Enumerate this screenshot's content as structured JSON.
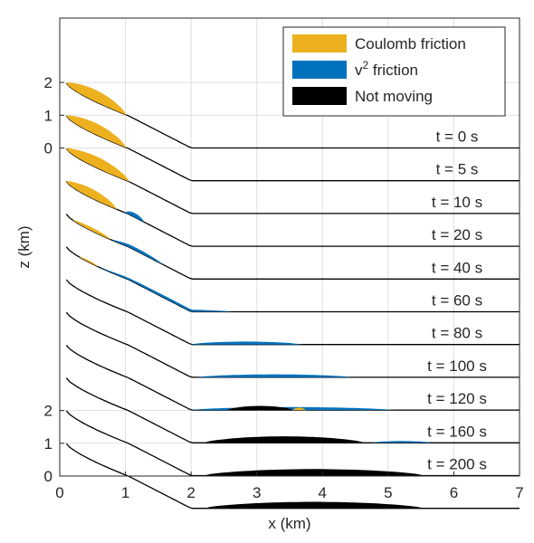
{
  "chart_data": {
    "type": "area",
    "xlabel": "x (km)",
    "ylabel": "z (km)",
    "xlim": [
      0,
      7
    ],
    "x_ticks": [
      "0",
      "1",
      "2",
      "3",
      "4",
      "5",
      "6",
      "7"
    ],
    "y_ticks_top": [
      "2",
      "1",
      "0"
    ],
    "y_ticks_bottom": [
      "2",
      "1",
      "0"
    ],
    "grid": true,
    "legend_position": "top-right",
    "legend": [
      {
        "key": "coulomb",
        "label": "Coulomb friction",
        "color": "#EDB120"
      },
      {
        "key": "v2",
        "label": "v",
        "sup": "2",
        "suffix": " friction",
        "color": "#0072BD"
      },
      {
        "key": "stopped",
        "label": "Not moving",
        "color": "#000000"
      }
    ],
    "profile_note": "terrain: 2 km vertical drop over x 0 to 2 km, flat floor from x 2 to 7 km",
    "snapshots": [
      {
        "time": "t = 0 s",
        "segments": [
          {
            "state": "coulomb",
            "x0": 0.1,
            "x1": 1.05,
            "h": 0.2
          }
        ]
      },
      {
        "time": "t = 5 s",
        "segments": [
          {
            "state": "coulomb",
            "x0": 0.1,
            "x1": 1.05,
            "h": 0.195
          }
        ]
      },
      {
        "time": "t = 10 s",
        "segments": [
          {
            "state": "coulomb",
            "x0": 0.1,
            "x1": 1.1,
            "h": 0.19
          }
        ]
      },
      {
        "time": "t = 20 s",
        "segments": [
          {
            "state": "coulomb",
            "x0": 0.1,
            "x1": 0.9,
            "h": 0.16
          },
          {
            "state": "v2",
            "x0": 1.0,
            "x1": 1.3,
            "h": 0.07
          }
        ]
      },
      {
        "time": "t = 40 s",
        "segments": [
          {
            "state": "coulomb",
            "x0": 0.2,
            "x1": 0.8,
            "h": 0.06
          },
          {
            "state": "v2",
            "x0": 0.8,
            "x1": 1.6,
            "h": 0.05
          }
        ]
      },
      {
        "time": "t = 60 s",
        "segments": [
          {
            "state": "coulomb",
            "x0": 0.3,
            "x1": 0.6,
            "h": 0.03
          },
          {
            "state": "v2",
            "x0": 0.6,
            "x1": 2.7,
            "h": 0.04
          }
        ]
      },
      {
        "time": "t = 80 s",
        "segments": [
          {
            "state": "v2",
            "x0": 2.0,
            "x1": 3.75,
            "h": 0.05
          }
        ]
      },
      {
        "time": "t = 100 s",
        "segments": [
          {
            "state": "v2",
            "x0": 2.1,
            "x1": 4.55,
            "h": 0.05
          }
        ]
      },
      {
        "time": "t = 120 s",
        "segments": [
          {
            "state": "v2",
            "x0": 2.0,
            "x1": 5.2,
            "h": 0.05
          },
          {
            "state": "stopped",
            "x0": 2.55,
            "x1": 3.6,
            "h": 0.07
          },
          {
            "state": "coulomb",
            "x0": 3.55,
            "x1": 3.75,
            "h": 0.04
          }
        ]
      },
      {
        "time": "t = 160 s",
        "segments": [
          {
            "state": "stopped",
            "x0": 2.2,
            "x1": 4.75,
            "h": 0.11
          },
          {
            "state": "v2",
            "x0": 4.75,
            "x1": 5.7,
            "h": 0.03
          }
        ]
      },
      {
        "time": "t = 200 s",
        "segments": [
          {
            "state": "stopped",
            "x0": 2.2,
            "x1": 5.7,
            "h": 0.11
          }
        ]
      },
      {
        "time": "",
        "segments": [
          {
            "state": "stopped",
            "x0": 2.2,
            "x1": 5.7,
            "h": 0.11
          }
        ]
      }
    ]
  }
}
